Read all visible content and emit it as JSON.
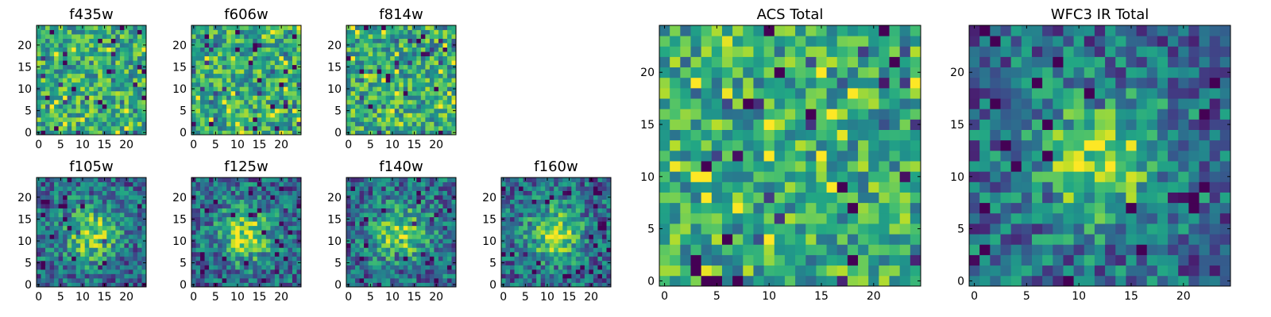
{
  "chart_data": {
    "type": "heatmap",
    "colormap": "viridis",
    "panels": [
      {
        "id": "f435w",
        "title": "f435w",
        "size": 25,
        "xticks": [
          "0",
          "5",
          "10",
          "15",
          "20"
        ],
        "yticks": [
          "0",
          "5",
          "10",
          "15",
          "20"
        ],
        "pattern": "noise"
      },
      {
        "id": "f606w",
        "title": "f606w",
        "size": 25,
        "xticks": [
          "0",
          "5",
          "10",
          "15",
          "20"
        ],
        "yticks": [
          "0",
          "5",
          "10",
          "15",
          "20"
        ],
        "pattern": "noise"
      },
      {
        "id": "f814w",
        "title": "f814w",
        "size": 25,
        "xticks": [
          "0",
          "5",
          "10",
          "15",
          "20"
        ],
        "yticks": [
          "0",
          "5",
          "10",
          "15",
          "20"
        ],
        "pattern": "noise"
      },
      {
        "id": "f105w",
        "title": "f105w",
        "size": 25,
        "xticks": [
          "0",
          "5",
          "10",
          "15",
          "20"
        ],
        "yticks": [
          "0",
          "5",
          "10",
          "15",
          "20"
        ],
        "pattern": "blob"
      },
      {
        "id": "f125w",
        "title": "f125w",
        "size": 25,
        "xticks": [
          "0",
          "5",
          "10",
          "15",
          "20"
        ],
        "yticks": [
          "0",
          "5",
          "10",
          "15",
          "20"
        ],
        "pattern": "blob"
      },
      {
        "id": "f140w",
        "title": "f140w",
        "size": 25,
        "xticks": [
          "0",
          "5",
          "10",
          "15",
          "20"
        ],
        "yticks": [
          "0",
          "5",
          "10",
          "15",
          "20"
        ],
        "pattern": "blob"
      },
      {
        "id": "f160w",
        "title": "f160w",
        "size": 25,
        "xticks": [
          "0",
          "5",
          "10",
          "15",
          "20"
        ],
        "yticks": [
          "0",
          "5",
          "10",
          "15",
          "20"
        ],
        "pattern": "blob"
      },
      {
        "id": "acs-total",
        "title": "ACS Total",
        "size": 25,
        "xticks": [
          "0",
          "5",
          "10",
          "15",
          "20"
        ],
        "yticks": [
          "0",
          "5",
          "10",
          "15",
          "20"
        ],
        "pattern": "noise"
      },
      {
        "id": "wfc3-ir-total",
        "title": "WFC3 IR Total",
        "size": 25,
        "xticks": [
          "0",
          "5",
          "10",
          "15",
          "20"
        ],
        "yticks": [
          "0",
          "5",
          "10",
          "15",
          "20"
        ],
        "pattern": "blob"
      }
    ]
  }
}
